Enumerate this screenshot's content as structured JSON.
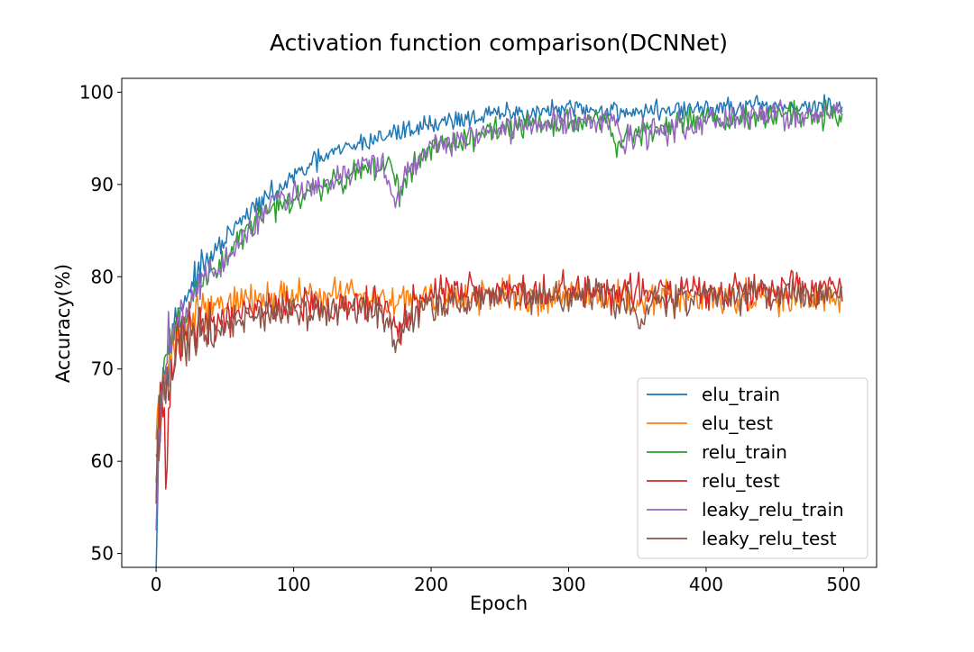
{
  "chart_data": {
    "type": "line",
    "title": "Activation function comparison(DCNNet)",
    "xlabel": "Epoch",
    "ylabel": "Accuracy(%)",
    "xlim": [
      -25,
      524
    ],
    "ylim": [
      48.5,
      101.5
    ],
    "xticks": [
      0,
      100,
      200,
      300,
      400,
      500
    ],
    "yticks": [
      50,
      60,
      70,
      80,
      90,
      100
    ],
    "grid": false,
    "legend_position": "lower-right",
    "epochs": 500,
    "series": [
      {
        "name": "elu_train",
        "color": "#1f77b4",
        "anchors": [
          [
            0,
            50.8
          ],
          [
            1,
            58
          ],
          [
            2,
            63
          ],
          [
            3,
            66.5
          ],
          [
            5,
            68.5
          ],
          [
            8,
            71.5
          ],
          [
            12,
            74.5
          ],
          [
            20,
            77.5
          ],
          [
            30,
            80.2
          ],
          [
            40,
            82
          ],
          [
            50,
            84
          ],
          [
            60,
            85.7
          ],
          [
            70,
            87.2
          ],
          [
            80,
            88.5
          ],
          [
            90,
            89.5
          ],
          [
            100,
            90.8
          ],
          [
            120,
            92.8
          ],
          [
            140,
            94
          ],
          [
            160,
            95
          ],
          [
            180,
            95.8
          ],
          [
            200,
            96.6
          ],
          [
            220,
            97.1
          ],
          [
            250,
            97.6
          ],
          [
            300,
            98.1
          ],
          [
            350,
            97.9
          ],
          [
            400,
            98.2
          ],
          [
            450,
            98.4
          ],
          [
            500,
            98.4
          ]
        ],
        "noise": 0.55
      },
      {
        "name": "elu_test",
        "color": "#ff7f0e",
        "anchors": [
          [
            0,
            64
          ],
          [
            2,
            67.5
          ],
          [
            4,
            69
          ],
          [
            6,
            70.5
          ],
          [
            10,
            72
          ],
          [
            20,
            74.3
          ],
          [
            30,
            75.8
          ],
          [
            40,
            76.8
          ],
          [
            50,
            77.2
          ],
          [
            70,
            77.6
          ],
          [
            100,
            77.9
          ],
          [
            130,
            78.2
          ],
          [
            160,
            77.8
          ],
          [
            200,
            77.6
          ],
          [
            250,
            77.7
          ],
          [
            300,
            78.1
          ],
          [
            350,
            77.6
          ],
          [
            400,
            77.7
          ],
          [
            450,
            77.6
          ],
          [
            500,
            77.6
          ]
        ],
        "noise": 0.9
      },
      {
        "name": "relu_train",
        "color": "#2ca02c",
        "anchors": [
          [
            0,
            57
          ],
          [
            2,
            64
          ],
          [
            4,
            68.5
          ],
          [
            8,
            71.5
          ],
          [
            14,
            74
          ],
          [
            25,
            77.3
          ],
          [
            35,
            79.3
          ],
          [
            50,
            81.8
          ],
          [
            60,
            83.8
          ],
          [
            75,
            86.5
          ],
          [
            90,
            88
          ],
          [
            100,
            88.5
          ],
          [
            120,
            89.5
          ],
          [
            150,
            91.8
          ],
          [
            170,
            92.2
          ],
          [
            178,
            88.8
          ],
          [
            185,
            91.5
          ],
          [
            200,
            94
          ],
          [
            250,
            96
          ],
          [
            300,
            96.7
          ],
          [
            328,
            97
          ],
          [
            335,
            94
          ],
          [
            345,
            95.5
          ],
          [
            360,
            96.2
          ],
          [
            400,
            97.2
          ],
          [
            450,
            97.6
          ],
          [
            500,
            97.7
          ]
        ],
        "noise": 0.7
      },
      {
        "name": "relu_test",
        "color": "#d62728",
        "anchors": [
          [
            0,
            57
          ],
          [
            2,
            64
          ],
          [
            4,
            66.5
          ],
          [
            7,
            58.5
          ],
          [
            10,
            68.5
          ],
          [
            15,
            72.5
          ],
          [
            25,
            73.8
          ],
          [
            45,
            74.8
          ],
          [
            70,
            76.5
          ],
          [
            100,
            76.8
          ],
          [
            130,
            76.2
          ],
          [
            150,
            77
          ],
          [
            170,
            76.5
          ],
          [
            178,
            73.8
          ],
          [
            185,
            76.5
          ],
          [
            200,
            78.3
          ],
          [
            250,
            78.4
          ],
          [
            300,
            78.6
          ],
          [
            350,
            78.3
          ],
          [
            400,
            78.6
          ],
          [
            450,
            78.6
          ],
          [
            500,
            78.8
          ]
        ],
        "noise": 0.95
      },
      {
        "name": "leaky_relu_train",
        "color": "#9467bd",
        "anchors": [
          [
            0,
            55
          ],
          [
            2,
            61
          ],
          [
            4,
            65.5
          ],
          [
            8,
            71
          ],
          [
            14,
            74
          ],
          [
            25,
            77.3
          ],
          [
            35,
            79.5
          ],
          [
            50,
            81.5
          ],
          [
            60,
            83.5
          ],
          [
            75,
            86.5
          ],
          [
            90,
            88.5
          ],
          [
            100,
            89
          ],
          [
            120,
            90
          ],
          [
            150,
            92.5
          ],
          [
            165,
            92
          ],
          [
            174,
            87.8
          ],
          [
            182,
            91.5
          ],
          [
            200,
            94
          ],
          [
            250,
            96
          ],
          [
            300,
            96.8
          ],
          [
            330,
            97
          ],
          [
            340,
            94.5
          ],
          [
            355,
            95.5
          ],
          [
            400,
            97
          ],
          [
            450,
            97.5
          ],
          [
            500,
            97.8
          ]
        ],
        "noise": 0.7
      },
      {
        "name": "leaky_relu_test",
        "color": "#8c564b",
        "anchors": [
          [
            0,
            56
          ],
          [
            2,
            62
          ],
          [
            4,
            66
          ],
          [
            8,
            68.5
          ],
          [
            15,
            72
          ],
          [
            25,
            73.5
          ],
          [
            45,
            74.5
          ],
          [
            70,
            75.5
          ],
          [
            100,
            76.3
          ],
          [
            150,
            76.5
          ],
          [
            168,
            76
          ],
          [
            174,
            72
          ],
          [
            182,
            75
          ],
          [
            200,
            77
          ],
          [
            250,
            77.5
          ],
          [
            300,
            77.9
          ],
          [
            345,
            77.3
          ],
          [
            352,
            74.5
          ],
          [
            360,
            77.5
          ],
          [
            400,
            77.9
          ],
          [
            450,
            78
          ],
          [
            500,
            77.9
          ]
        ],
        "noise": 0.9
      }
    ]
  }
}
